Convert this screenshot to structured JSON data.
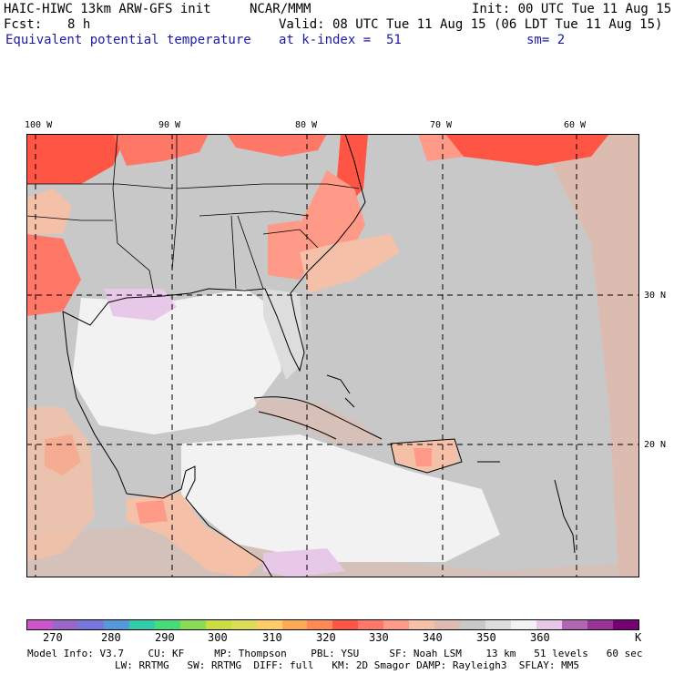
{
  "header": {
    "model": "HAIC-HIWC 13km ARW-GFS init",
    "org": "NCAR/MMM",
    "init": "Init: 00 UTC Tue 11 Aug 15",
    "fcst_label": "Fcst:",
    "fcst_value": "8 h",
    "valid": "Valid: 08 UTC Tue 11 Aug 15 (06 LDT Tue 11 Aug 15)",
    "field": "Equivalent potential temperature",
    "level": "at k-index =  51",
    "smooth": "sm= 2"
  },
  "map": {
    "lon_labels": [
      "100 W",
      "90 W",
      "80 W",
      "70 W",
      "60 W"
    ],
    "lat_labels": [
      "30 N",
      "20 N"
    ]
  },
  "colorbar": {
    "unit": "K",
    "tick_labels": [
      "270",
      "280",
      "290",
      "300",
      "310",
      "320",
      "330",
      "340",
      "350",
      "360"
    ],
    "colors": [
      "#cc55cc",
      "#9966cc",
      "#7777dd",
      "#5599dd",
      "#33ccaa",
      "#44dd77",
      "#88dd55",
      "#ccdd44",
      "#dddd55",
      "#ffcc66",
      "#ffaa55",
      "#ff8855",
      "#ff5544",
      "#ff7766",
      "#ff9988",
      "#f4c0a8",
      "#dcbcb0",
      "#c8c8c8",
      "#dddddd",
      "#f2f2f2",
      "#e8c8e8",
      "#b066b0",
      "#993399",
      "#770077"
    ]
  },
  "footer": {
    "line1": "Model Info: V3.7    CU: KF     MP: Thompson    PBL: YSU     SF: Noah LSM    13 km   51 levels   60 sec",
    "line2": "LW: RRTMG   SW: RRTMG  DIFF: full   KM: 2D Smagor DAMP: Rayleigh3  SFLAY: MM5"
  }
}
